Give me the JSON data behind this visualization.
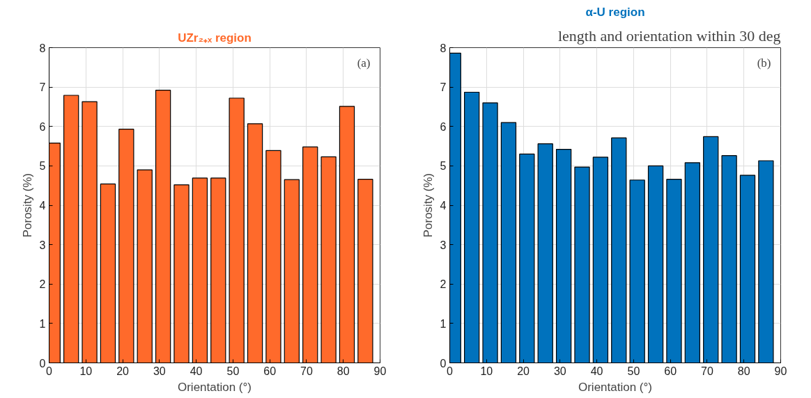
{
  "chart_data": [
    {
      "type": "bar",
      "title": "UZr₂₊ₓ region",
      "xlabel": "Orientation (°)",
      "ylabel": "Porosity (%)",
      "x": [
        1,
        6,
        11,
        16,
        21,
        26,
        31,
        36,
        41,
        46,
        51,
        56,
        61,
        66,
        71,
        76,
        81,
        86
      ],
      "series": [
        {
          "color": "#ff6a2b",
          "values": [
            5.58,
            6.79,
            6.63,
            4.54,
            5.93,
            4.9,
            6.92,
            4.52,
            4.69,
            4.69,
            6.72,
            6.07,
            5.39,
            4.65,
            5.48,
            5.23,
            6.51,
            4.66
          ]
        }
      ],
      "xlim": [
        0,
        90
      ],
      "xticks": [
        0,
        10,
        20,
        30,
        40,
        50,
        60,
        70,
        80,
        90
      ],
      "ylim": [
        0,
        8
      ],
      "yticks": [
        0,
        1,
        2,
        3,
        4,
        5,
        6,
        7,
        8
      ],
      "grid": true,
      "annotations": [
        "(a)"
      ]
    },
    {
      "type": "bar",
      "title": "α-U region",
      "xlabel": "Orientation (°)",
      "ylabel": "Porosity (%)",
      "x": [
        1,
        6,
        11,
        16,
        21,
        26,
        31,
        36,
        41,
        46,
        51,
        56,
        61,
        66,
        71,
        76,
        81,
        86
      ],
      "series": [
        {
          "color": "#0072bd",
          "values": [
            7.86,
            6.87,
            6.6,
            6.1,
            5.3,
            5.56,
            5.42,
            4.97,
            5.22,
            5.71,
            4.64,
            5.0,
            4.66,
            5.08,
            5.74,
            5.26,
            4.76,
            5.13
          ]
        }
      ],
      "xlim": [
        0,
        90
      ],
      "xticks": [
        0,
        10,
        20,
        30,
        40,
        50,
        60,
        70,
        80,
        90
      ],
      "ylim": [
        0,
        8
      ],
      "yticks": [
        0,
        1,
        2,
        3,
        4,
        5,
        6,
        7,
        8
      ],
      "grid": true,
      "annotations": [
        "(b)",
        "length and orientation within 30 deg"
      ]
    }
  ]
}
